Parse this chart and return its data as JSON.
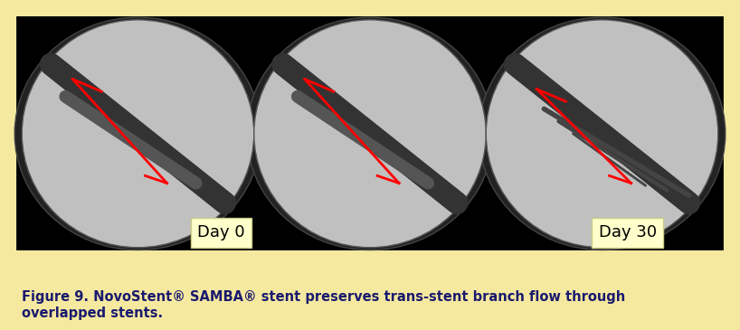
{
  "outer_bg": "#f5e9a0",
  "inner_bg": "#000000",
  "caption_bg": "#e8e8e8",
  "caption_text": "Figure 9. NovoStent® SAMBA® stent preserves trans-stent branch flow through\noverlapped stents.",
  "caption_fontsize": 10.5,
  "caption_color": "#1a1a6e",
  "day0_label": "Day 0",
  "day30_label": "Day 30",
  "label_fontsize": 13,
  "label_bg": "#ffffcc",
  "label_color": "#000000",
  "ellipse_color": "#888888",
  "red_color": "#ff0000",
  "figure_width": 8.18,
  "figure_height": 3.65
}
